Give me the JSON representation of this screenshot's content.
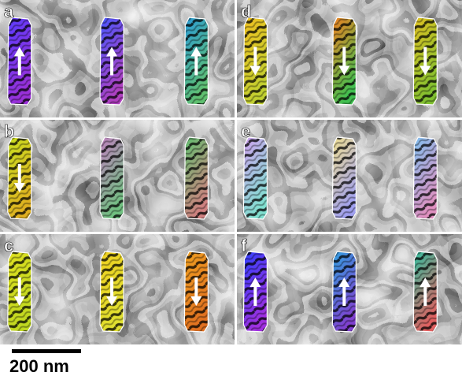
{
  "panels": [
    {
      "label": "a"
    },
    {
      "label": "b"
    },
    {
      "label": "c"
    },
    {
      "label": "d"
    },
    {
      "label": "e"
    },
    {
      "label": "f"
    }
  ],
  "scale_bar": {
    "label": "200 nm"
  }
}
